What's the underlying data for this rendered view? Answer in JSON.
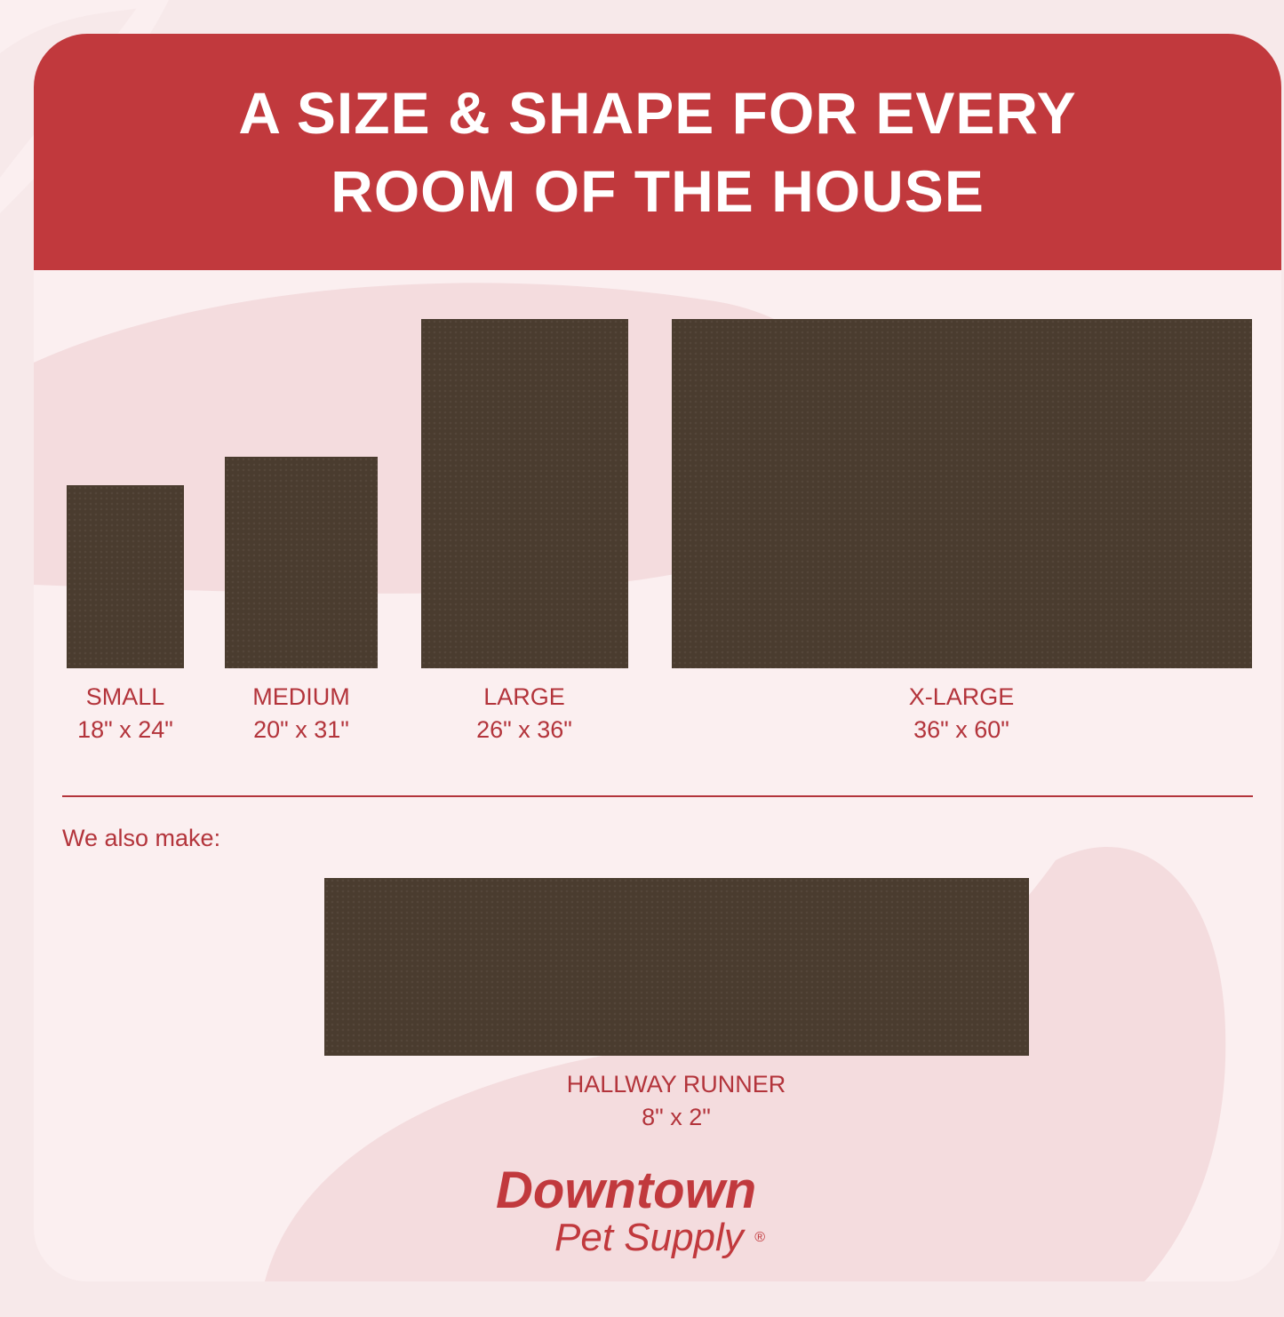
{
  "header": {
    "title_line1": "A SIZE & SHAPE FOR EVERY",
    "title_line2": "ROOM OF THE HOUSE"
  },
  "sizes": [
    {
      "name": "SMALL",
      "dims": "18\" x 24\""
    },
    {
      "name": "MEDIUM",
      "dims": "20\" x 31\""
    },
    {
      "name": "LARGE",
      "dims": "26\" x 36\""
    },
    {
      "name": "X-LARGE",
      "dims": "36\" x 60\""
    }
  ],
  "also": {
    "label": "We also make:",
    "name": "HALLWAY RUNNER",
    "dims": "8\" x 2\""
  },
  "brand": {
    "line1": "Downtown",
    "line2": "Pet Supply",
    "mark": "®"
  },
  "colors": {
    "accent": "#c1393d",
    "text": "#b3343b",
    "mat": "#4a3c2f",
    "background": "#fbeff0"
  }
}
